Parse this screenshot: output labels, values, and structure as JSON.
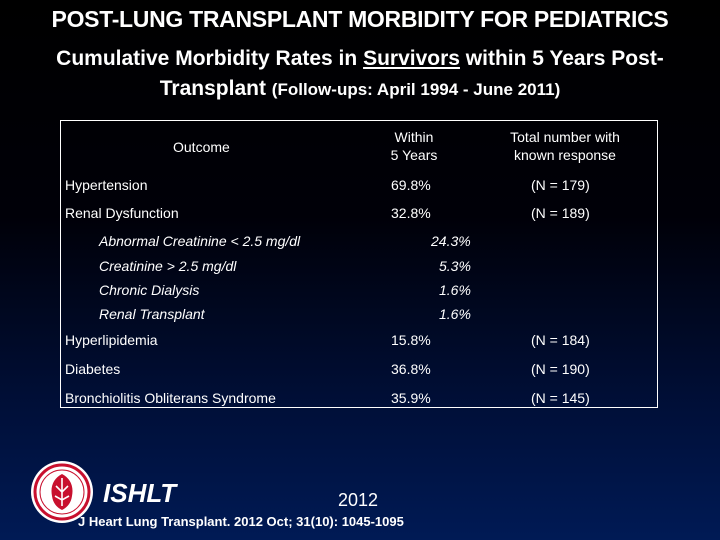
{
  "slide": {
    "title": "POST-LUNG TRANSPLANT MORBIDITY FOR PEDIATRICS",
    "subtitle_part1": "Cumulative Morbidity Rates in ",
    "subtitle_underlined": "Survivors",
    "subtitle_part2": " within 5 Years Post-",
    "subtitle_line2": "Transplant ",
    "subtitle_small": "(Follow-ups: April 1994 - June 2011)"
  },
  "table": {
    "headers": {
      "outcome": "Outcome",
      "within_line1": "Within",
      "within_line2": "5 Years",
      "total_line1": "Total number with",
      "total_line2": "known response"
    },
    "rows": [
      {
        "outcome": "Hypertension",
        "rate": "69.8%",
        "n": "(N = 179)"
      },
      {
        "outcome": "Renal Dysfunction",
        "rate": "32.8%",
        "n": "(N = 189)"
      },
      {
        "outcome": "Abnormal Creatinine < 2.5 mg/dl",
        "rate": "24.3%",
        "n": ""
      },
      {
        "outcome": "Creatinine > 2.5 mg/dl",
        "rate": "5.3%",
        "n": ""
      },
      {
        "outcome": "Chronic Dialysis",
        "rate": "1.6%",
        "n": ""
      },
      {
        "outcome": "Renal Transplant",
        "rate": "1.6%",
        "n": ""
      },
      {
        "outcome": "Hyperlipidemia",
        "rate": "15.8%",
        "n": "(N = 184)"
      },
      {
        "outcome": "Diabetes",
        "rate": "36.8%",
        "n": "(N = 190)"
      },
      {
        "outcome": "Bronchiolitis Obliterans Syndrome",
        "rate": "35.9%",
        "n": "(N = 145)"
      }
    ]
  },
  "footer": {
    "org": "ISHLT",
    "year": "2012",
    "citation": "J Heart Lung Transplant. 2012 Oct; 31(10): 1045-1095"
  },
  "colors": {
    "background_top": "#000000",
    "background_bottom": "#001a55",
    "text": "#ffffff",
    "logo_red": "#c8102e"
  },
  "icons": [
    "ishlt-seal-icon"
  ]
}
